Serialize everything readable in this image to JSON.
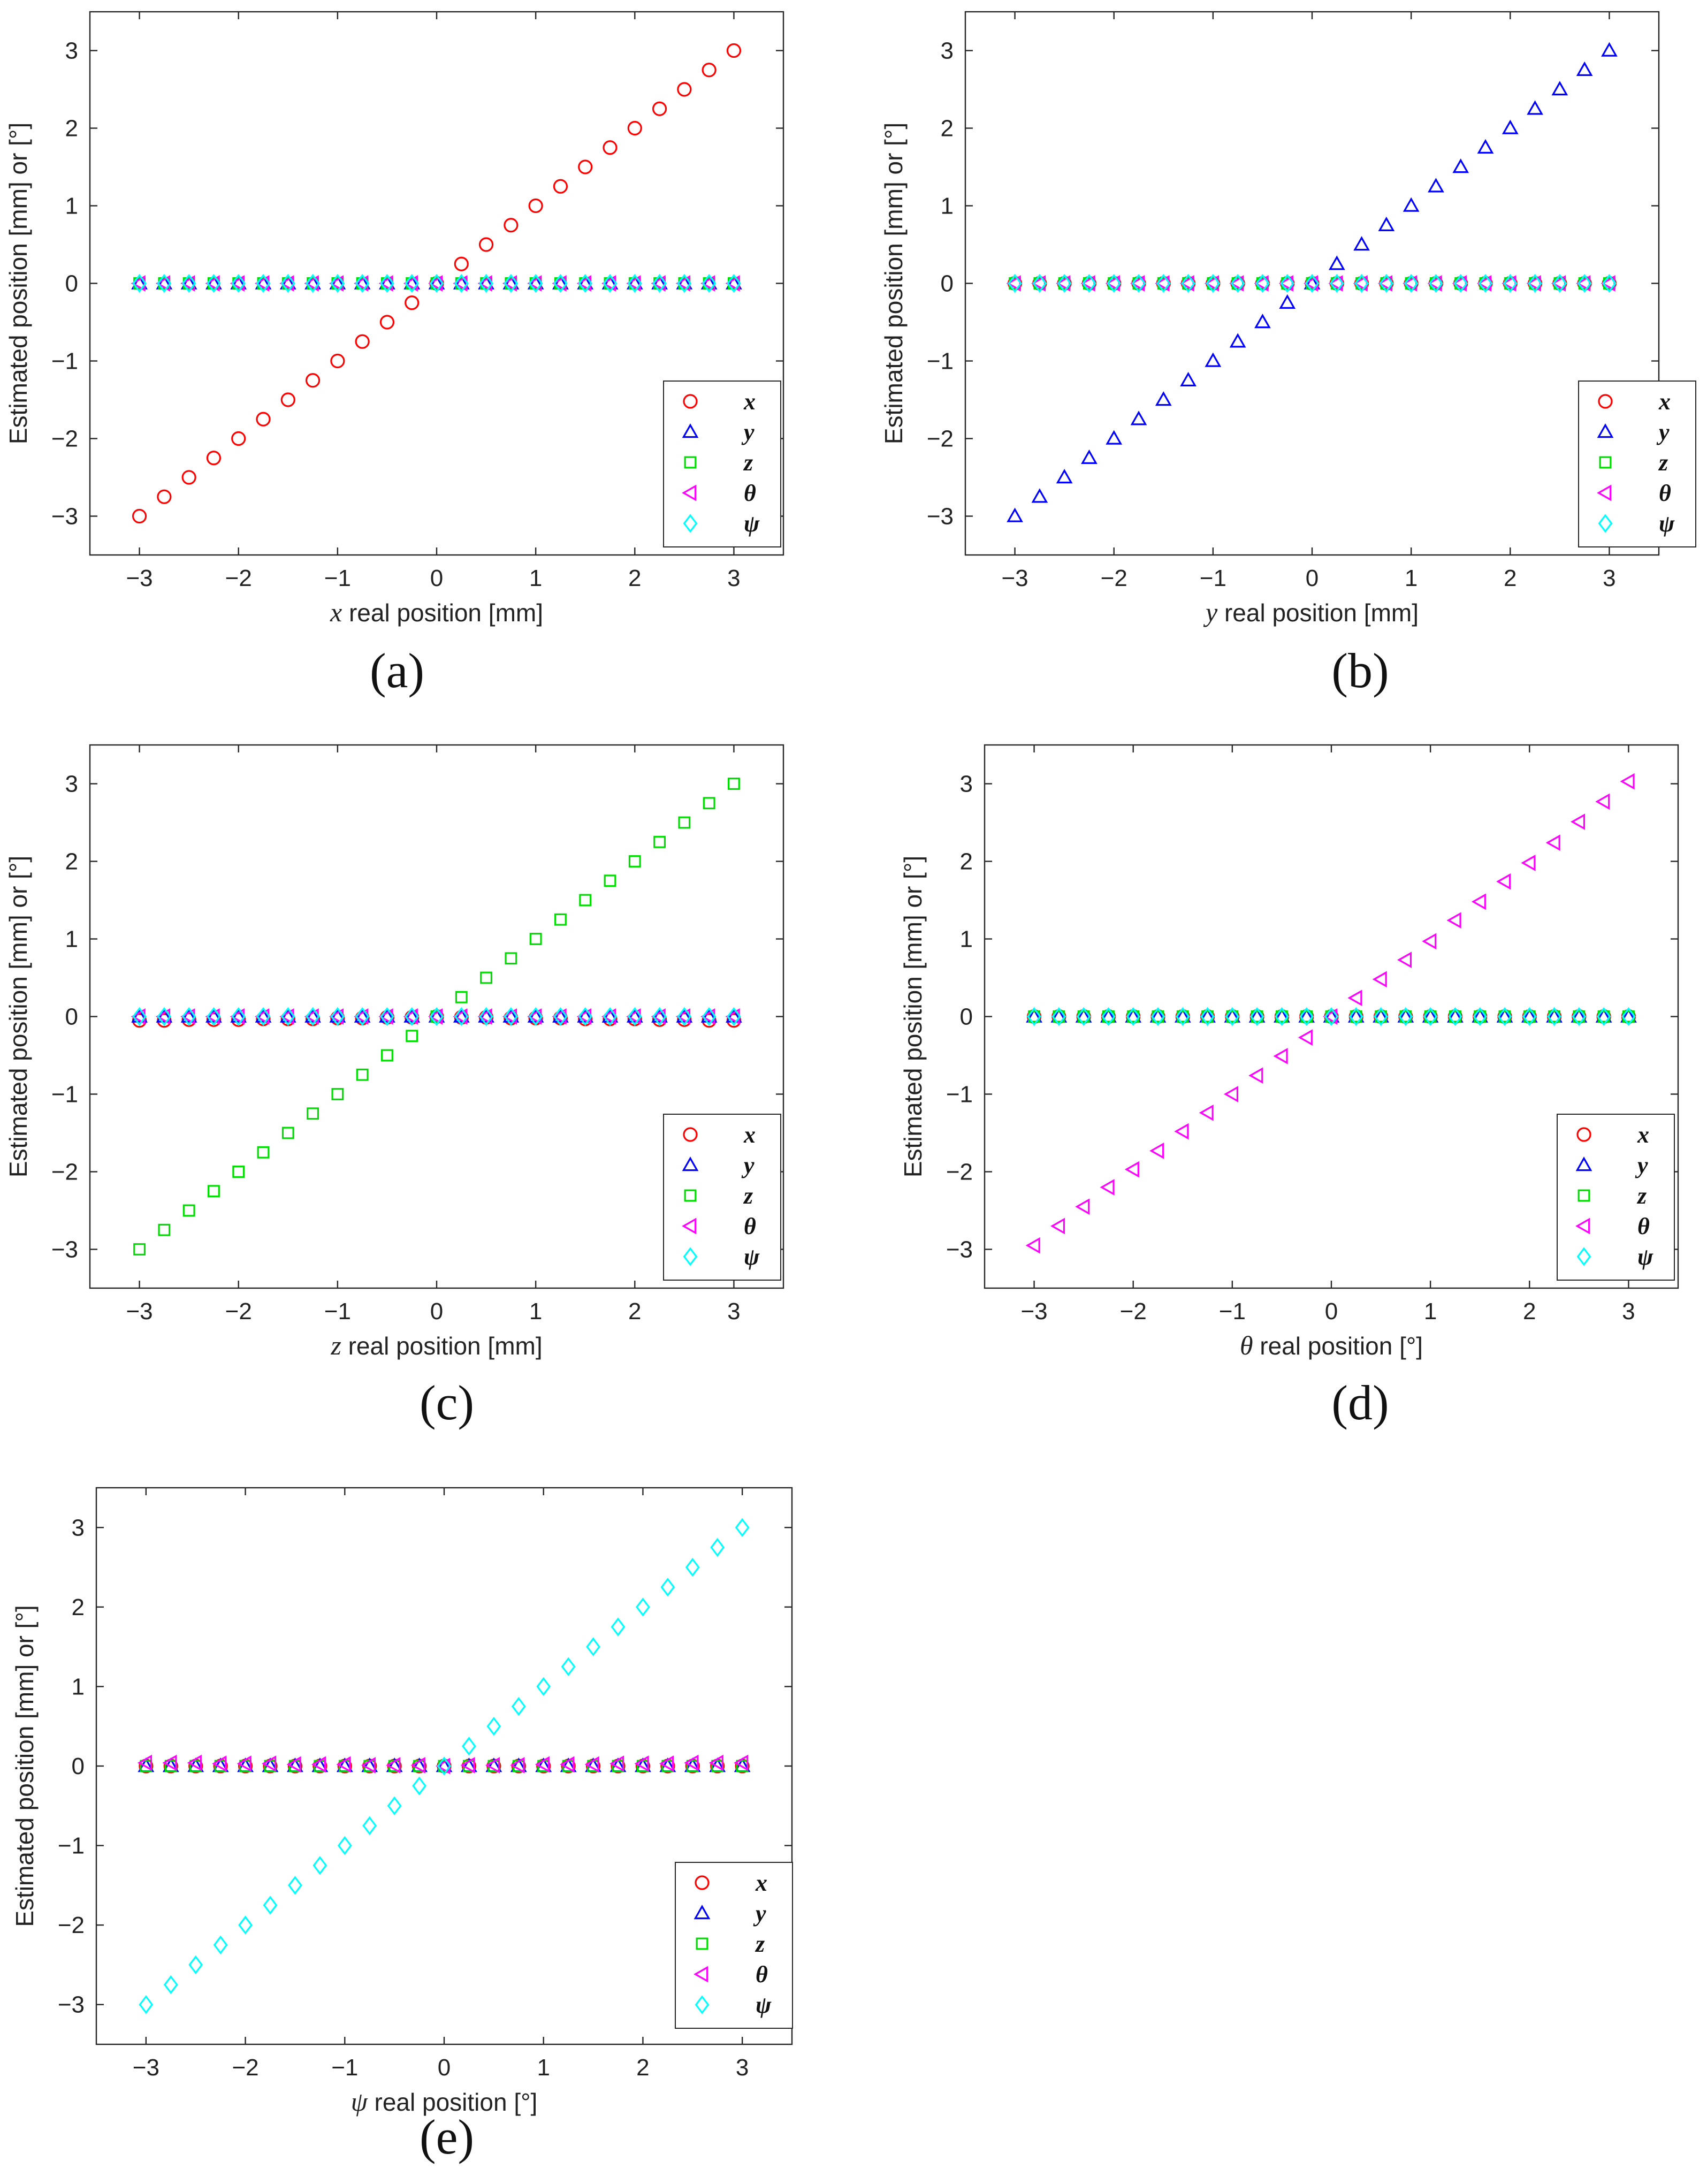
{
  "figure": {
    "captions": [
      "(a)",
      "(b)",
      "(c)",
      "(d)",
      "(e)"
    ]
  },
  "series_styles": [
    {
      "name": "x",
      "marker": "circle",
      "color": "#ff0000"
    },
    {
      "name": "y",
      "marker": "triangle-up",
      "color": "#0000ff"
    },
    {
      "name": "z",
      "marker": "square",
      "color": "#00dd00"
    },
    {
      "name": "θ",
      "marker": "triangle-left",
      "color": "#ff00ff"
    },
    {
      "name": "ψ",
      "marker": "diamond",
      "color": "#00ffff"
    }
  ],
  "chart_data": [
    {
      "type": "scatter",
      "panel": "(a)",
      "xlabel": "x real position [mm]",
      "xlabel_var": "x",
      "xlabel_rest": " real position [mm]",
      "ylabel": "Estimated position [mm] or [°]",
      "xlim": [
        -3.5,
        3.5
      ],
      "ylim": [
        -3.5,
        3.5
      ],
      "xticks": [
        "-3",
        "-2",
        "-1",
        "0",
        "1",
        "2",
        "3"
      ],
      "yticks": [
        "-3",
        "-2",
        "-1",
        "0",
        "1",
        "2",
        "3"
      ],
      "swept_variable": "x",
      "x": [
        -3,
        -2.75,
        -2.5,
        -2.25,
        -2,
        -1.75,
        -1.5,
        -1.25,
        -1,
        -0.75,
        -0.5,
        -0.25,
        0,
        0.25,
        0.5,
        0.75,
        1,
        1.25,
        1.5,
        1.75,
        2,
        2.25,
        2.5,
        2.75,
        3
      ],
      "series": [
        {
          "name": "x",
          "values": [
            -3,
            -2.75,
            -2.5,
            -2.25,
            -2,
            -1.75,
            -1.5,
            -1.25,
            -1,
            -0.75,
            -0.5,
            -0.25,
            0,
            0.25,
            0.5,
            0.75,
            1,
            1.25,
            1.5,
            1.75,
            2,
            2.25,
            2.5,
            2.75,
            3
          ]
        },
        {
          "name": "y",
          "values": [
            0,
            0,
            0,
            0,
            0,
            0,
            0,
            0,
            0,
            0,
            0,
            0,
            0,
            0,
            0,
            0,
            0,
            0,
            0,
            0,
            0,
            0,
            0,
            0,
            0
          ]
        },
        {
          "name": "z",
          "values": [
            0,
            0,
            0,
            0,
            0,
            0,
            0,
            0,
            0,
            0,
            0,
            0,
            0,
            0,
            0,
            0,
            0,
            0,
            0,
            0,
            0,
            0,
            0,
            0,
            0
          ]
        },
        {
          "name": "θ",
          "values": [
            0,
            0,
            0,
            0,
            0,
            0,
            0,
            0,
            0,
            0,
            0,
            0,
            0,
            0,
            0,
            0,
            0,
            0,
            0,
            0,
            0,
            0,
            0,
            0,
            0
          ]
        },
        {
          "name": "ψ",
          "values": [
            0,
            0,
            0,
            0,
            0,
            0,
            0,
            0,
            0,
            0,
            0,
            0,
            0,
            0,
            0,
            0,
            0,
            0,
            0,
            0,
            0,
            0,
            0,
            0,
            0
          ]
        }
      ],
      "legend": [
        "x",
        "y",
        "z",
        "θ",
        "ψ"
      ],
      "legend_position": "lower-right",
      "grid": false
    },
    {
      "type": "scatter",
      "panel": "(b)",
      "xlabel": "y real position [mm]",
      "xlabel_var": "y",
      "xlabel_rest": " real position [mm]",
      "ylabel": "Estimated position [mm] or [°]",
      "xlim": [
        -3.5,
        3.5
      ],
      "ylim": [
        -3.5,
        3.5
      ],
      "xticks": [
        "-3",
        "-2",
        "-1",
        "0",
        "1",
        "2",
        "3"
      ],
      "yticks": [
        "-3",
        "-2",
        "-1",
        "0",
        "1",
        "2",
        "3"
      ],
      "swept_variable": "y",
      "x": [
        -3,
        -2.75,
        -2.5,
        -2.25,
        -2,
        -1.75,
        -1.5,
        -1.25,
        -1,
        -0.75,
        -0.5,
        -0.25,
        0,
        0.25,
        0.5,
        0.75,
        1,
        1.25,
        1.5,
        1.75,
        2,
        2.25,
        2.5,
        2.75,
        3
      ],
      "series": [
        {
          "name": "x",
          "values": [
            0,
            0,
            0,
            0,
            0,
            0,
            0,
            0,
            0,
            0,
            0,
            0,
            0,
            0,
            0,
            0,
            0,
            0,
            0,
            0,
            0,
            0,
            0,
            0,
            0
          ]
        },
        {
          "name": "y",
          "values": [
            -3,
            -2.75,
            -2.5,
            -2.25,
            -2,
            -1.75,
            -1.5,
            -1.25,
            -1,
            -0.75,
            -0.5,
            -0.25,
            0,
            0.25,
            0.5,
            0.75,
            1,
            1.25,
            1.5,
            1.75,
            2,
            2.25,
            2.5,
            2.75,
            3
          ]
        },
        {
          "name": "z",
          "values": [
            0,
            0,
            0,
            0,
            0,
            0,
            0,
            0,
            0,
            0,
            0,
            0,
            0,
            0,
            0,
            0,
            0,
            0,
            0,
            0,
            0,
            0,
            0,
            0,
            0
          ]
        },
        {
          "name": "θ",
          "values": [
            0,
            0,
            0,
            0,
            0,
            0,
            0,
            0,
            0,
            0,
            0,
            0,
            0,
            0,
            0,
            0,
            0,
            0,
            0,
            0,
            0,
            0,
            0,
            0,
            0
          ]
        },
        {
          "name": "ψ",
          "values": [
            0,
            0,
            0,
            0,
            0,
            0,
            0,
            0,
            0,
            0,
            0,
            0,
            0,
            0,
            0,
            0,
            0,
            0,
            0,
            0,
            0,
            0,
            0,
            0,
            0
          ]
        }
      ],
      "legend": [
        "x",
        "y",
        "z",
        "θ",
        "ψ"
      ],
      "legend_position": "lower-right",
      "grid": false
    },
    {
      "type": "scatter",
      "panel": "(c)",
      "xlabel": "z real position [mm]",
      "xlabel_var": "z",
      "xlabel_rest": " real position [mm]",
      "ylabel": "Estimated position [mm] or [°]",
      "xlim": [
        -3.5,
        3.5
      ],
      "ylim": [
        -3.5,
        3.5
      ],
      "xticks": [
        "-3",
        "-2",
        "-1",
        "0",
        "1",
        "2",
        "3"
      ],
      "yticks": [
        "-3",
        "-2",
        "-1",
        "0",
        "1",
        "2",
        "3"
      ],
      "swept_variable": "z",
      "x": [
        -3,
        -2.75,
        -2.5,
        -2.25,
        -2,
        -1.75,
        -1.5,
        -1.25,
        -1,
        -0.75,
        -0.5,
        -0.25,
        0,
        0.25,
        0.5,
        0.75,
        1,
        1.25,
        1.5,
        1.75,
        2,
        2.25,
        2.5,
        2.75,
        3
      ],
      "series": [
        {
          "name": "x",
          "values": [
            -0.05,
            -0.05,
            -0.04,
            -0.04,
            -0.04,
            -0.03,
            -0.03,
            -0.03,
            -0.02,
            -0.02,
            -0.01,
            -0.01,
            0,
            -0.01,
            -0.01,
            -0.02,
            -0.02,
            -0.02,
            -0.03,
            -0.03,
            -0.03,
            -0.04,
            -0.04,
            -0.05,
            -0.05
          ]
        },
        {
          "name": "y",
          "values": [
            0,
            0,
            0,
            0,
            0,
            0,
            0,
            0,
            0,
            0,
            0,
            0,
            0,
            0,
            0,
            0,
            0,
            0,
            0,
            0,
            0,
            0,
            0,
            0,
            0
          ]
        },
        {
          "name": "z",
          "values": [
            -3,
            -2.75,
            -2.5,
            -2.25,
            -2,
            -1.75,
            -1.5,
            -1.25,
            -1,
            -0.75,
            -0.5,
            -0.25,
            0,
            0.25,
            0.5,
            0.75,
            1,
            1.25,
            1.5,
            1.75,
            2,
            2.25,
            2.5,
            2.75,
            3
          ]
        },
        {
          "name": "θ",
          "values": [
            0,
            0,
            0,
            0,
            0,
            0,
            0,
            0,
            0,
            0,
            0,
            0,
            0,
            0,
            0,
            0,
            0,
            0,
            0,
            0,
            0,
            0,
            0,
            0,
            0
          ]
        },
        {
          "name": "ψ",
          "values": [
            0,
            0,
            0,
            0,
            0,
            0,
            0,
            0,
            0,
            0,
            0,
            0,
            0,
            0,
            0,
            0,
            0,
            0,
            0,
            0,
            0,
            0,
            0,
            0,
            0
          ]
        }
      ],
      "legend": [
        "x",
        "y",
        "z",
        "θ",
        "ψ"
      ],
      "legend_position": "lower-right",
      "grid": false
    },
    {
      "type": "scatter",
      "panel": "(d)",
      "xlabel": "θ real position [°]",
      "xlabel_var": "θ",
      "xlabel_rest": " real position [°]",
      "ylabel": "Estimated position [mm] or [°]",
      "xlim": [
        -3.5,
        3.5
      ],
      "ylim": [
        -3.5,
        3.5
      ],
      "xticks": [
        "-3",
        "-2",
        "-1",
        "0",
        "1",
        "2",
        "3"
      ],
      "yticks": [
        "-3",
        "-2",
        "-1",
        "0",
        "1",
        "2",
        "3"
      ],
      "swept_variable": "θ",
      "x": [
        -3,
        -2.75,
        -2.5,
        -2.25,
        -2,
        -1.75,
        -1.5,
        -1.25,
        -1,
        -0.75,
        -0.5,
        -0.25,
        0,
        0.25,
        0.5,
        0.75,
        1,
        1.25,
        1.5,
        1.75,
        2,
        2.25,
        2.5,
        2.75,
        3
      ],
      "series": [
        {
          "name": "x",
          "values": [
            0,
            0,
            0,
            0,
            0,
            0,
            0,
            0,
            0,
            0,
            0,
            0,
            0,
            0,
            0,
            0,
            0,
            0,
            0,
            0,
            0,
            0,
            0,
            0,
            0
          ]
        },
        {
          "name": "y",
          "values": [
            0,
            0,
            0,
            0,
            0,
            0,
            0,
            0,
            0,
            0,
            0,
            0,
            0,
            0,
            0,
            0,
            0,
            0,
            0,
            0,
            0,
            0,
            0,
            0,
            0
          ]
        },
        {
          "name": "z",
          "values": [
            0,
            0,
            0,
            0,
            0,
            0,
            0,
            0,
            0,
            0,
            0,
            0,
            0,
            0,
            0,
            0,
            0,
            0,
            0,
            0,
            0,
            0,
            0,
            0,
            0
          ]
        },
        {
          "name": "θ",
          "values": [
            -2.95,
            -2.7,
            -2.45,
            -2.2,
            -1.97,
            -1.73,
            -1.48,
            -1.24,
            -1,
            -0.76,
            -0.51,
            -0.27,
            0,
            0.24,
            0.48,
            0.73,
            0.97,
            1.24,
            1.48,
            1.74,
            1.98,
            2.24,
            2.51,
            2.77,
            3.03
          ]
        },
        {
          "name": "ψ",
          "values": [
            0,
            0,
            0,
            0,
            0,
            0,
            0,
            0,
            0,
            0,
            0,
            0,
            0,
            0,
            0,
            0,
            0,
            0,
            0,
            0,
            0,
            0,
            0,
            0,
            0
          ]
        }
      ],
      "legend": [
        "x",
        "y",
        "z",
        "θ",
        "ψ"
      ],
      "legend_position": "lower-right",
      "grid": false
    },
    {
      "type": "scatter",
      "panel": "(e)",
      "xlabel": "ψ real position [°]",
      "xlabel_var": "ψ",
      "xlabel_rest": " real position [°]",
      "ylabel": "Estimated position [mm] or [°]",
      "xlim": [
        -3.5,
        3.5
      ],
      "ylim": [
        -3.5,
        3.5
      ],
      "xticks": [
        "-3",
        "-2",
        "-1",
        "0",
        "1",
        "2",
        "3"
      ],
      "yticks": [
        "-3",
        "-2",
        "-1",
        "0",
        "1",
        "2",
        "3"
      ],
      "swept_variable": "ψ",
      "x": [
        -3,
        -2.75,
        -2.5,
        -2.25,
        -2,
        -1.75,
        -1.5,
        -1.25,
        -1,
        -0.75,
        -0.5,
        -0.25,
        0,
        0.25,
        0.5,
        0.75,
        1,
        1.25,
        1.5,
        1.75,
        2,
        2.25,
        2.5,
        2.75,
        3
      ],
      "series": [
        {
          "name": "x",
          "values": [
            0,
            0,
            0,
            0,
            0,
            0,
            0,
            0,
            0,
            0,
            0,
            0,
            0,
            0,
            0,
            0,
            0,
            0,
            0,
            0,
            0,
            0,
            0,
            0,
            0
          ]
        },
        {
          "name": "y",
          "values": [
            0,
            0,
            0,
            0,
            0,
            0,
            0,
            0,
            0,
            0,
            0,
            0,
            0,
            0,
            0,
            0,
            0,
            0,
            0,
            0,
            0,
            0,
            0,
            0,
            0
          ]
        },
        {
          "name": "z",
          "values": [
            0,
            0,
            0,
            0,
            0,
            0,
            0,
            0,
            0,
            0,
            0,
            0,
            0,
            0,
            0,
            0,
            0,
            0,
            0,
            0,
            0,
            0,
            0,
            0,
            0
          ]
        },
        {
          "name": "θ",
          "values": [
            0.04,
            0.04,
            0.04,
            0.03,
            0.03,
            0.03,
            0.02,
            0.02,
            0.02,
            0.01,
            0.01,
            0.01,
            0,
            0.01,
            0.01,
            0.01,
            0.02,
            0.02,
            0.02,
            0.03,
            0.03,
            0.03,
            0.04,
            0.04,
            0.04
          ]
        },
        {
          "name": "ψ",
          "values": [
            -3,
            -2.75,
            -2.5,
            -2.25,
            -2,
            -1.75,
            -1.5,
            -1.25,
            -1,
            -0.75,
            -0.5,
            -0.25,
            0,
            0.25,
            0.5,
            0.75,
            1,
            1.25,
            1.5,
            1.75,
            2,
            2.25,
            2.5,
            2.75,
            3
          ]
        }
      ],
      "legend": [
        "x",
        "y",
        "z",
        "θ",
        "ψ"
      ],
      "legend_position": "lower-right",
      "grid": false
    }
  ]
}
